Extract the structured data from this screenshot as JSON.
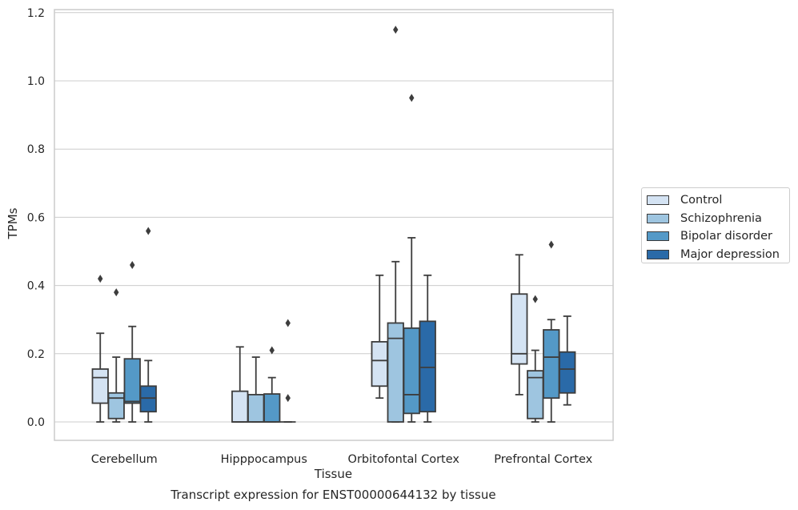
{
  "chart_data": {
    "type": "box",
    "xlabel": "Tissue",
    "ylabel": "TPMs",
    "caption": "Transcript expression for ENST00000644132 by tissue",
    "ylim": [
      -0.055,
      1.21
    ],
    "yticks": [
      "0.0",
      "0.2",
      "0.4",
      "0.6",
      "0.8",
      "1.0",
      "1.2"
    ],
    "categories": [
      "Cerebellum",
      "Hipppocampus",
      "Orbitofontal Cortex",
      "Prefrontal Cortex"
    ],
    "legend_position": "right",
    "grid": "horizontal",
    "series": [
      {
        "name": "Control",
        "color": "#d4e3f3",
        "boxes": [
          {
            "whislo": 0.0,
            "q1": 0.055,
            "med": 0.13,
            "q3": 0.155,
            "whishi": 0.26,
            "fliers": [
              0.42
            ]
          },
          {
            "whislo": 0.0,
            "q1": 0.0,
            "med": 0.0,
            "q3": 0.09,
            "whishi": 0.22,
            "fliers": []
          },
          {
            "whislo": 0.07,
            "q1": 0.105,
            "med": 0.18,
            "q3": 0.235,
            "whishi": 0.43,
            "fliers": []
          },
          {
            "whislo": 0.08,
            "q1": 0.17,
            "med": 0.2,
            "q3": 0.375,
            "whishi": 0.49,
            "fliers": []
          }
        ]
      },
      {
        "name": "Schizophrenia",
        "color": "#9ec5e0",
        "boxes": [
          {
            "whislo": 0.0,
            "q1": 0.01,
            "med": 0.07,
            "q3": 0.085,
            "whishi": 0.19,
            "fliers": [
              0.38
            ]
          },
          {
            "whislo": 0.0,
            "q1": 0.0,
            "med": 0.0,
            "q3": 0.08,
            "whishi": 0.19,
            "fliers": []
          },
          {
            "whislo": 0.0,
            "q1": 0.0,
            "med": 0.245,
            "q3": 0.29,
            "whishi": 0.47,
            "fliers": [
              1.15
            ]
          },
          {
            "whislo": 0.0,
            "q1": 0.01,
            "med": 0.13,
            "q3": 0.15,
            "whishi": 0.21,
            "fliers": [
              0.36
            ]
          }
        ]
      },
      {
        "name": "Bipolar disorder",
        "color": "#5499c7",
        "boxes": [
          {
            "whislo": 0.0,
            "q1": 0.055,
            "med": 0.06,
            "q3": 0.185,
            "whishi": 0.28,
            "fliers": [
              0.46
            ]
          },
          {
            "whislo": 0.0,
            "q1": 0.0,
            "med": 0.0,
            "q3": 0.082,
            "whishi": 0.13,
            "fliers": [
              0.21
            ]
          },
          {
            "whislo": 0.0,
            "q1": 0.025,
            "med": 0.08,
            "q3": 0.275,
            "whishi": 0.54,
            "fliers": [
              0.95
            ]
          },
          {
            "whislo": 0.0,
            "q1": 0.07,
            "med": 0.19,
            "q3": 0.27,
            "whishi": 0.3,
            "fliers": [
              0.52
            ]
          }
        ]
      },
      {
        "name": "Major depression",
        "color": "#2a6aa8",
        "boxes": [
          {
            "whislo": 0.0,
            "q1": 0.03,
            "med": 0.07,
            "q3": 0.105,
            "whishi": 0.18,
            "fliers": [
              0.56
            ]
          },
          {
            "whislo": 0.0,
            "q1": 0.0,
            "med": 0.0,
            "q3": 0.0,
            "whishi": 0.0,
            "fliers": [
              0.29,
              0.07
            ]
          },
          {
            "whislo": 0.0,
            "q1": 0.03,
            "med": 0.16,
            "q3": 0.295,
            "whishi": 0.43,
            "fliers": []
          },
          {
            "whislo": 0.05,
            "q1": 0.085,
            "med": 0.155,
            "q3": 0.205,
            "whishi": 0.31,
            "fliers": []
          }
        ]
      }
    ]
  }
}
